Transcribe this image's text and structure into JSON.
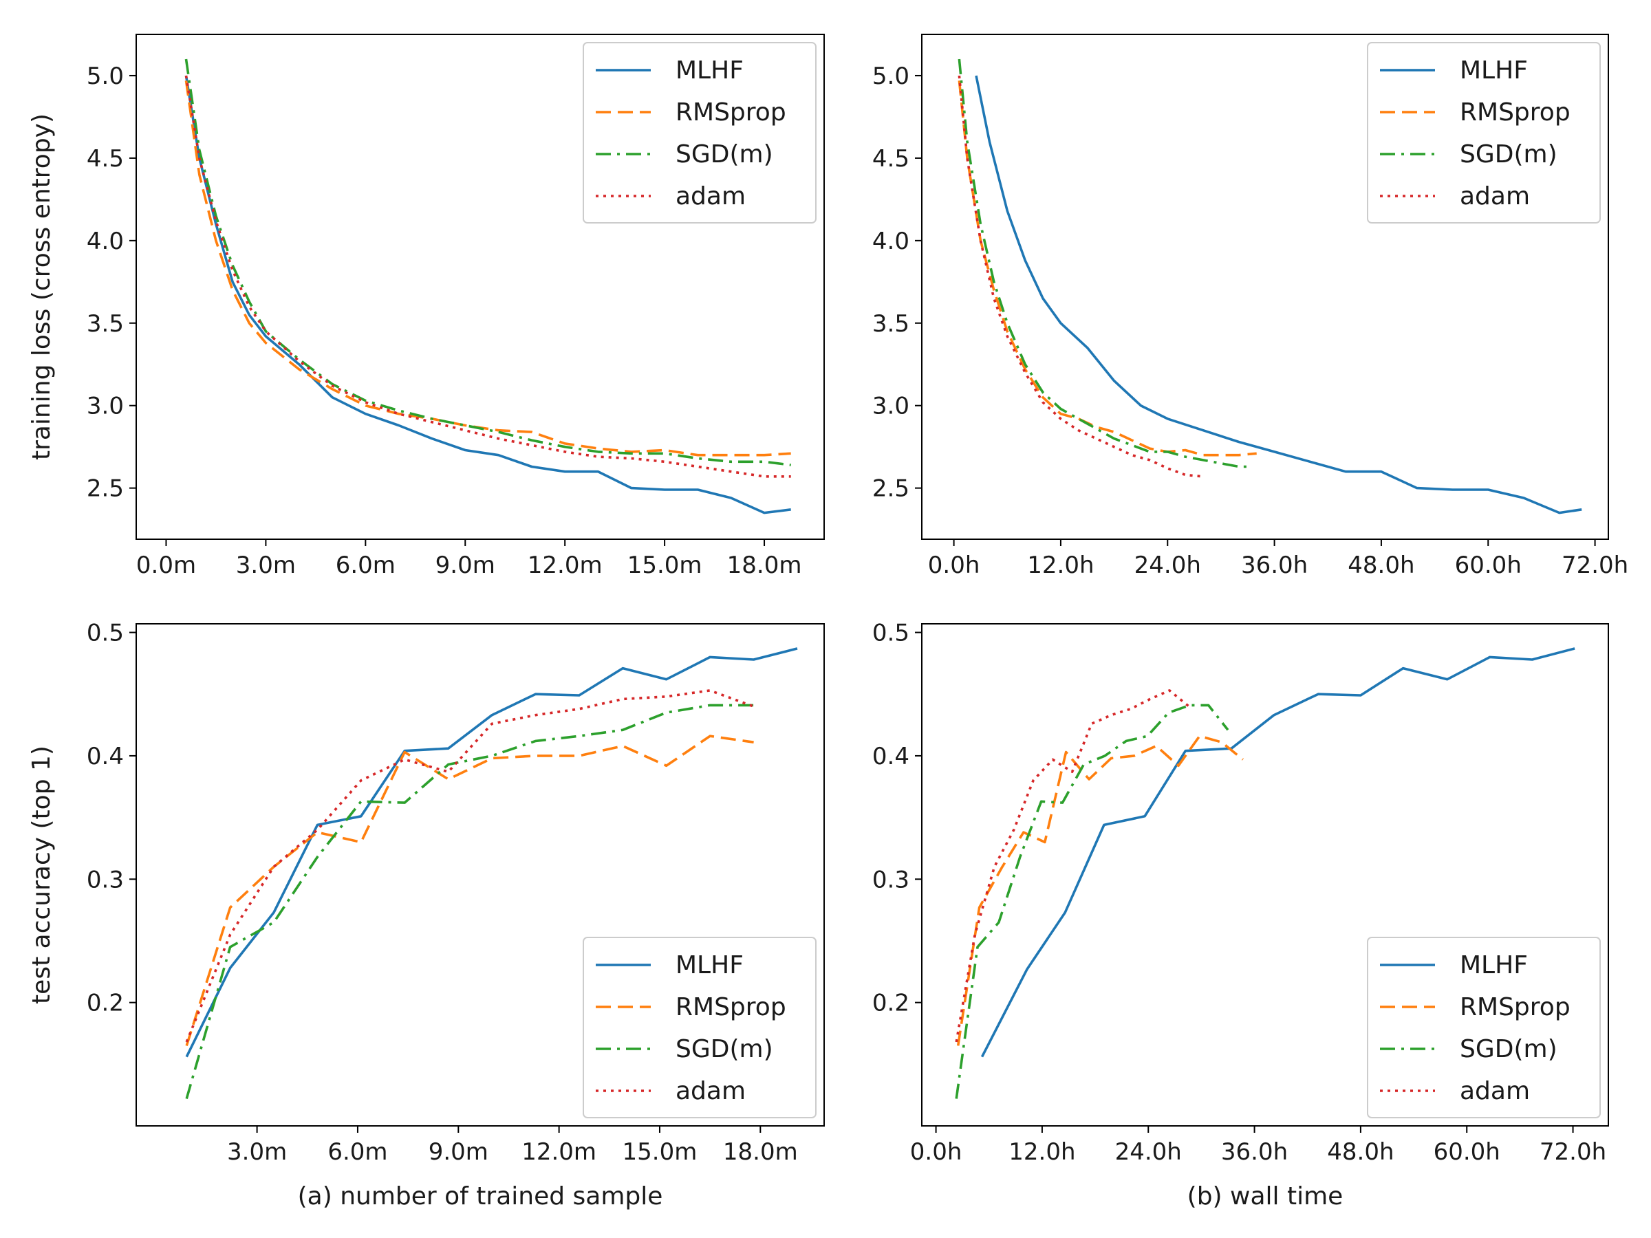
{
  "chart_data": [
    {
      "id": "loss-vs-samples",
      "type": "line",
      "title": "",
      "xlabel": "",
      "ylabel": "training loss (cross entropy)",
      "xlim": [
        -0.9,
        19.8
      ],
      "ylim": [
        2.19,
        5.25
      ],
      "xticks": [
        0,
        3,
        6,
        9,
        12,
        15,
        18
      ],
      "xtick_labels": [
        "0.0m",
        "3.0m",
        "6.0m",
        "9.0m",
        "12.0m",
        "15.0m",
        "18.0m"
      ],
      "yticks": [
        2.5,
        3.0,
        3.5,
        4.0,
        4.5,
        5.0
      ],
      "ytick_labels": [
        "2.5",
        "3.0",
        "3.5",
        "4.0",
        "4.5",
        "5.0"
      ],
      "legend_position": "upper-right",
      "series": [
        {
          "name": "MLHF",
          "x": [
            0.6,
            1.0,
            1.5,
            2.0,
            2.5,
            3.0,
            4.0,
            5.0,
            6.0,
            7.0,
            8.0,
            9.0,
            10.0,
            11.0,
            12.0,
            13.0,
            14.0,
            15.0,
            16.0,
            17.0,
            18.0,
            18.8
          ],
          "y": [
            5.0,
            4.5,
            4.1,
            3.75,
            3.55,
            3.42,
            3.25,
            3.05,
            2.95,
            2.88,
            2.8,
            2.73,
            2.7,
            2.63,
            2.6,
            2.6,
            2.5,
            2.49,
            2.49,
            2.44,
            2.35,
            2.37
          ]
        },
        {
          "name": "RMSprop",
          "x": [
            0.6,
            1.0,
            1.5,
            2.0,
            2.5,
            3.0,
            4.0,
            5.0,
            6.0,
            7.0,
            8.0,
            9.0,
            10.0,
            11.0,
            12.0,
            13.0,
            14.0,
            15.0,
            16.0,
            17.0,
            18.0,
            18.8
          ],
          "y": [
            4.97,
            4.4,
            4.0,
            3.7,
            3.5,
            3.38,
            3.22,
            3.1,
            3.0,
            2.95,
            2.92,
            2.88,
            2.85,
            2.84,
            2.77,
            2.74,
            2.72,
            2.73,
            2.7,
            2.7,
            2.7,
            2.71
          ]
        },
        {
          "name": "SGD(m)",
          "x": [
            0.6,
            1.0,
            1.5,
            2.0,
            2.5,
            3.0,
            4.0,
            5.0,
            6.0,
            7.0,
            8.0,
            9.0,
            10.0,
            11.0,
            12.0,
            13.0,
            14.0,
            15.0,
            16.0,
            17.0,
            18.0,
            18.8
          ],
          "y": [
            5.1,
            4.55,
            4.15,
            3.85,
            3.63,
            3.45,
            3.28,
            3.13,
            3.03,
            2.97,
            2.92,
            2.88,
            2.84,
            2.79,
            2.75,
            2.72,
            2.71,
            2.71,
            2.68,
            2.66,
            2.66,
            2.64
          ]
        },
        {
          "name": "adam",
          "x": [
            0.6,
            1.0,
            1.5,
            2.0,
            2.5,
            3.0,
            4.0,
            5.0,
            6.0,
            7.0,
            8.0,
            9.0,
            10.0,
            11.0,
            12.0,
            13.0,
            14.0,
            15.0,
            16.0,
            17.0,
            18.0,
            18.8
          ],
          "y": [
            5.0,
            4.5,
            4.12,
            3.82,
            3.6,
            3.45,
            3.27,
            3.12,
            3.02,
            2.95,
            2.9,
            2.85,
            2.8,
            2.76,
            2.72,
            2.69,
            2.68,
            2.66,
            2.63,
            2.6,
            2.57,
            2.57
          ]
        }
      ]
    },
    {
      "id": "loss-vs-time",
      "type": "line",
      "title": "",
      "xlabel": "",
      "ylabel": "",
      "xlim": [
        -3.6,
        73.5
      ],
      "ylim": [
        2.19,
        5.25
      ],
      "xticks": [
        0,
        12,
        24,
        36,
        48,
        60,
        72
      ],
      "xtick_labels": [
        "0.0h",
        "12.0h",
        "24.0h",
        "36.0h",
        "48.0h",
        "60.0h",
        "72.0h"
      ],
      "yticks": [
        2.5,
        3.0,
        3.5,
        4.0,
        4.5,
        5.0
      ],
      "ytick_labels": [
        "2.5",
        "3.0",
        "3.5",
        "4.0",
        "4.5",
        "5.0"
      ],
      "legend_position": "upper-right",
      "series": [
        {
          "name": "MLHF",
          "x": [
            2.5,
            4.0,
            6.0,
            8.0,
            10.0,
            12.0,
            15.0,
            18.0,
            21.0,
            24.0,
            28.0,
            32.0,
            36.0,
            40.0,
            44.0,
            48.0,
            52.0,
            56.0,
            60.0,
            64.0,
            68.0,
            70.5
          ],
          "y": [
            5.0,
            4.6,
            4.18,
            3.88,
            3.65,
            3.5,
            3.35,
            3.15,
            3.0,
            2.92,
            2.85,
            2.78,
            2.72,
            2.66,
            2.6,
            2.6,
            2.5,
            2.49,
            2.49,
            2.44,
            2.35,
            2.37
          ]
        },
        {
          "name": "RMSprop",
          "x": [
            0.6,
            1.5,
            3.0,
            4.5,
            6.0,
            8.0,
            10.0,
            12.0,
            14.0,
            16.0,
            18.0,
            20.0,
            22.0,
            24.0,
            26.0,
            28.0,
            30.0,
            32.0,
            34.0
          ],
          "y": [
            4.97,
            4.5,
            4.0,
            3.7,
            3.45,
            3.22,
            3.05,
            2.95,
            2.92,
            2.87,
            2.84,
            2.79,
            2.74,
            2.72,
            2.73,
            2.7,
            2.7,
            2.7,
            2.71
          ]
        },
        {
          "name": "SGD(m)",
          "x": [
            0.6,
            1.5,
            3.0,
            4.5,
            6.0,
            8.0,
            10.0,
            12.0,
            14.0,
            16.0,
            18.0,
            20.0,
            22.0,
            24.0,
            26.0,
            28.0,
            30.0,
            32.0,
            33.0
          ],
          "y": [
            5.1,
            4.6,
            4.1,
            3.75,
            3.5,
            3.25,
            3.08,
            2.98,
            2.92,
            2.86,
            2.8,
            2.76,
            2.72,
            2.72,
            2.69,
            2.67,
            2.65,
            2.63,
            2.63
          ]
        },
        {
          "name": "adam",
          "x": [
            0.6,
            1.5,
            3.0,
            4.5,
            6.0,
            8.0,
            10.0,
            12.0,
            14.0,
            16.0,
            18.0,
            20.0,
            22.0,
            24.0,
            26.0,
            28.0
          ],
          "y": [
            5.0,
            4.5,
            4.0,
            3.65,
            3.42,
            3.2,
            3.02,
            2.92,
            2.85,
            2.8,
            2.75,
            2.7,
            2.67,
            2.62,
            2.58,
            2.57
          ]
        }
      ]
    },
    {
      "id": "acc-vs-samples",
      "type": "line",
      "title": "",
      "xlabel": "(a) number of trained sample",
      "ylabel": "test accuracy (top 1)",
      "xlim": [
        -0.6,
        19.9
      ],
      "ylim": [
        0.1,
        0.507
      ],
      "xticks": [
        3,
        6,
        9,
        12,
        15,
        18
      ],
      "xtick_labels": [
        "3.0m",
        "6.0m",
        "9.0m",
        "12.0m",
        "15.0m",
        "18.0m"
      ],
      "yticks": [
        0.2,
        0.3,
        0.4,
        0.5
      ],
      "ytick_labels": [
        "0.2",
        "0.3",
        "0.4",
        "0.5"
      ],
      "legend_position": "lower-right",
      "series": [
        {
          "name": "MLHF",
          "x": [
            0.9,
            2.2,
            3.5,
            4.8,
            6.1,
            7.4,
            8.7,
            10.0,
            11.3,
            12.6,
            13.9,
            15.2,
            16.5,
            17.8,
            19.1
          ],
          "y": [
            0.156,
            0.228,
            0.273,
            0.344,
            0.351,
            0.404,
            0.406,
            0.433,
            0.45,
            0.449,
            0.471,
            0.462,
            0.48,
            0.478,
            0.487
          ]
        },
        {
          "name": "RMSprop",
          "x": [
            0.9,
            2.2,
            3.5,
            4.8,
            6.1,
            7.4,
            8.7,
            10.0,
            11.3,
            12.6,
            13.9,
            15.2,
            16.5,
            17.8
          ],
          "y": [
            0.165,
            0.277,
            0.31,
            0.338,
            0.33,
            0.403,
            0.381,
            0.398,
            0.4,
            0.4,
            0.408,
            0.392,
            0.416,
            0.411
          ]
        },
        {
          "name": "SGD(m)",
          "x": [
            0.9,
            2.2,
            3.5,
            4.8,
            6.1,
            7.4,
            8.7,
            10.0,
            11.3,
            12.6,
            13.9,
            15.2,
            16.5,
            17.8
          ],
          "y": [
            0.122,
            0.245,
            0.265,
            0.318,
            0.363,
            0.362,
            0.393,
            0.4,
            0.412,
            0.416,
            0.421,
            0.435,
            0.441,
            0.441
          ]
        },
        {
          "name": "adam",
          "x": [
            0.9,
            2.2,
            3.5,
            4.8,
            6.1,
            7.4,
            8.7,
            10.0,
            11.3,
            12.6,
            13.9,
            15.2,
            16.5,
            17.8
          ],
          "y": [
            0.168,
            0.255,
            0.31,
            0.34,
            0.38,
            0.397,
            0.387,
            0.426,
            0.433,
            0.438,
            0.446,
            0.448,
            0.453,
            0.44
          ]
        }
      ]
    },
    {
      "id": "acc-vs-time",
      "type": "line",
      "title": "",
      "xlabel": "(b) wall time",
      "ylabel": "",
      "xlim": [
        -1.6,
        76.0
      ],
      "ylim": [
        0.1,
        0.507
      ],
      "xticks": [
        0,
        12,
        24,
        36,
        48,
        60,
        72
      ],
      "xtick_labels": [
        "0.0h",
        "12.0h",
        "24.0h",
        "36.0h",
        "48.0h",
        "60.0h",
        "72.0h"
      ],
      "yticks": [
        0.2,
        0.3,
        0.4,
        0.5
      ],
      "ytick_labels": [
        "0.2",
        "0.3",
        "0.4",
        "0.5"
      ],
      "legend_position": "lower-right",
      "series": [
        {
          "name": "MLHF",
          "x": [
            5.2,
            10.3,
            14.6,
            19.0,
            23.6,
            28.2,
            33.4,
            38.2,
            43.2,
            48.0,
            52.8,
            57.8,
            62.6,
            67.4,
            72.2
          ],
          "y": [
            0.156,
            0.227,
            0.273,
            0.344,
            0.351,
            0.404,
            0.406,
            0.433,
            0.45,
            0.449,
            0.471,
            0.462,
            0.48,
            0.478,
            0.487
          ]
        },
        {
          "name": "RMSprop",
          "x": [
            2.5,
            4.9,
            7.5,
            9.9,
            12.3,
            14.7,
            17.3,
            19.8,
            22.4,
            24.9,
            27.4,
            29.8,
            32.3,
            34.7
          ],
          "y": [
            0.165,
            0.277,
            0.31,
            0.338,
            0.33,
            0.403,
            0.381,
            0.398,
            0.4,
            0.408,
            0.392,
            0.416,
            0.411,
            0.397
          ]
        },
        {
          "name": "SGD(m)",
          "x": [
            2.3,
            4.7,
            7.1,
            9.5,
            11.9,
            14.3,
            16.7,
            19.1,
            21.5,
            23.9,
            26.3,
            28.7,
            30.8,
            33.0
          ],
          "y": [
            0.122,
            0.245,
            0.265,
            0.318,
            0.363,
            0.362,
            0.393,
            0.4,
            0.412,
            0.416,
            0.435,
            0.441,
            0.441,
            0.421
          ]
        },
        {
          "name": "adam",
          "x": [
            2.3,
            4.4,
            6.6,
            8.8,
            11.0,
            13.2,
            15.4,
            17.6,
            19.8,
            22.0,
            24.2,
            26.4,
            28.6
          ],
          "y": [
            0.168,
            0.255,
            0.31,
            0.34,
            0.38,
            0.397,
            0.387,
            0.426,
            0.433,
            0.438,
            0.446,
            0.453,
            0.44
          ]
        }
      ]
    }
  ],
  "style": {
    "series_colors": {
      "MLHF": "#1f77b4",
      "RMSprop": "#ff7f0e",
      "SGD(m)": "#2ca02c",
      "adam": "#d62728"
    },
    "series_dash": {
      "MLHF": "solid",
      "RMSprop": "dashed",
      "SGD(m)": "dashdot",
      "adam": "dotted"
    },
    "legend_order": [
      "MLHF",
      "RMSprop",
      "SGD(m)",
      "adam"
    ]
  }
}
